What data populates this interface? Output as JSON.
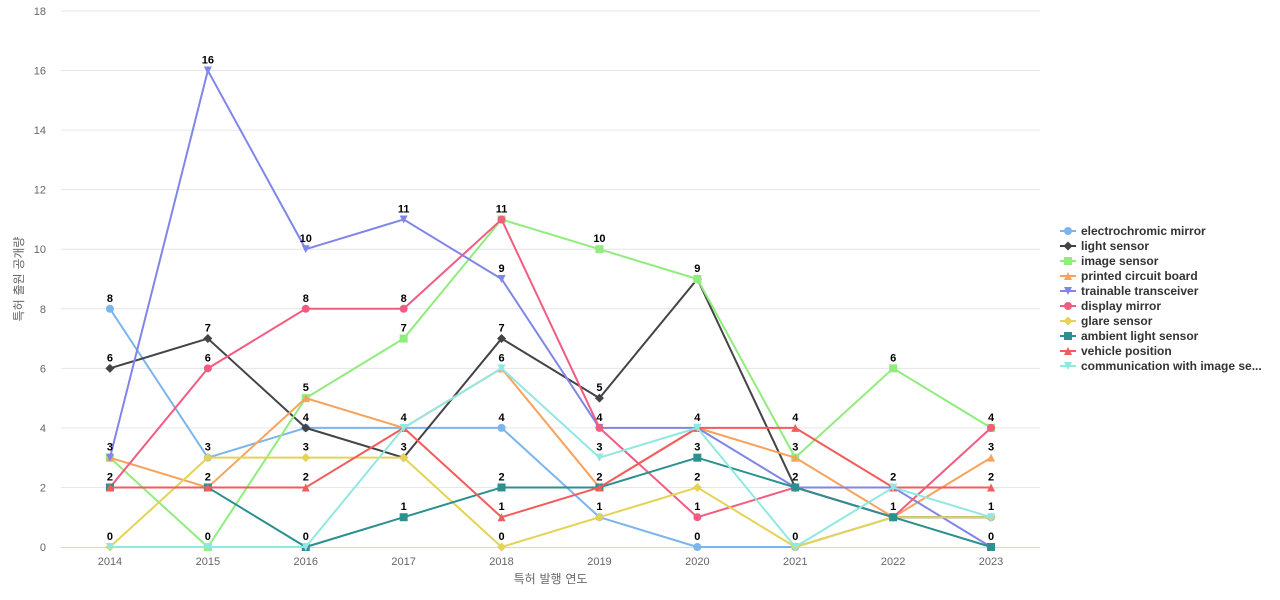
{
  "chart_data": {
    "type": "line",
    "title": "",
    "xlabel": "특허 발행 연도",
    "ylabel": "특허 출원 공개량",
    "ylim": [
      0,
      18
    ],
    "yticks": [
      0,
      2,
      4,
      6,
      8,
      10,
      12,
      14,
      16,
      18
    ],
    "categories": [
      "2014",
      "2015",
      "2016",
      "2017",
      "2018",
      "2019",
      "2020",
      "2021",
      "2022",
      "2023"
    ],
    "grid": true,
    "legend_position": "right",
    "series": [
      {
        "name": "electrochromic mirror",
        "color": "#7cb5ec",
        "marker": "circle",
        "values": [
          8,
          3,
          4,
          4,
          4,
          1,
          0,
          0,
          1,
          1
        ]
      },
      {
        "name": "light sensor",
        "color": "#434348",
        "marker": "diamond",
        "values": [
          6,
          7,
          4,
          3,
          7,
          5,
          9,
          2,
          1,
          1
        ]
      },
      {
        "name": "image sensor",
        "color": "#90ed7d",
        "marker": "square",
        "values": [
          3,
          0,
          5,
          7,
          11,
          10,
          9,
          3,
          6,
          4
        ]
      },
      {
        "name": "printed circuit board",
        "color": "#f7a35c",
        "marker": "triangle",
        "values": [
          3,
          2,
          5,
          4,
          6,
          2,
          4,
          3,
          1,
          3
        ]
      },
      {
        "name": "trainable transceiver",
        "color": "#8085e9",
        "marker": "triangle-down",
        "values": [
          3,
          16,
          10,
          11,
          9,
          4,
          4,
          2,
          2,
          0
        ]
      },
      {
        "name": "display mirror",
        "color": "#f15c80",
        "marker": "circle",
        "values": [
          2,
          6,
          8,
          8,
          11,
          4,
          1,
          2,
          1,
          4
        ]
      },
      {
        "name": "glare sensor",
        "color": "#e4d354",
        "marker": "diamond",
        "values": [
          0,
          3,
          3,
          3,
          0,
          1,
          2,
          0,
          1,
          1
        ]
      },
      {
        "name": "ambient light sensor",
        "color": "#2b908f",
        "marker": "square",
        "values": [
          2,
          2,
          0,
          1,
          2,
          2,
          3,
          2,
          1,
          0
        ]
      },
      {
        "name": "vehicle position",
        "color": "#f45b5b",
        "marker": "triangle",
        "values": [
          2,
          2,
          2,
          4,
          1,
          2,
          4,
          4,
          2,
          2
        ]
      },
      {
        "name": "communication with image se...",
        "color": "#91e8e1",
        "marker": "triangle-down",
        "values": [
          0,
          0,
          0,
          4,
          6,
          3,
          4,
          0,
          2,
          1
        ]
      }
    ],
    "data_labels": [
      {
        "category": "2014",
        "values": [
          8,
          6,
          3,
          2,
          0
        ]
      },
      {
        "category": "2015",
        "values": [
          16,
          7,
          6,
          3,
          2,
          0
        ]
      },
      {
        "category": "2016",
        "values": [
          10,
          8,
          5,
          4,
          3,
          2,
          0
        ]
      },
      {
        "category": "2017",
        "values": [
          11,
          8,
          7,
          4,
          3,
          1
        ]
      },
      {
        "category": "2018",
        "values": [
          11,
          9,
          7,
          6,
          4,
          2,
          1,
          0
        ]
      },
      {
        "category": "2019",
        "values": [
          10,
          5,
          4,
          3,
          2,
          1
        ]
      },
      {
        "category": "2020",
        "values": [
          9,
          4,
          3,
          2,
          1,
          0
        ]
      },
      {
        "category": "2021",
        "values": [
          4,
          3,
          2,
          0
        ]
      },
      {
        "category": "2022",
        "values": [
          6,
          2,
          1
        ]
      },
      {
        "category": "2023",
        "values": [
          4,
          3,
          2,
          1,
          0
        ]
      }
    ]
  }
}
